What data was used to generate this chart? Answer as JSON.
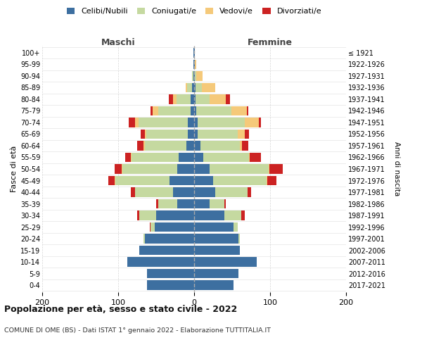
{
  "age_groups": [
    "0-4",
    "5-9",
    "10-14",
    "15-19",
    "20-24",
    "25-29",
    "30-34",
    "35-39",
    "40-44",
    "45-49",
    "50-54",
    "55-59",
    "60-64",
    "65-69",
    "70-74",
    "75-79",
    "80-84",
    "85-89",
    "90-94",
    "95-99",
    "100+"
  ],
  "birth_years": [
    "2017-2021",
    "2012-2016",
    "2007-2011",
    "2002-2006",
    "1997-2001",
    "1992-1996",
    "1987-1991",
    "1982-1986",
    "1977-1981",
    "1972-1976",
    "1967-1971",
    "1962-1966",
    "1957-1961",
    "1952-1956",
    "1947-1951",
    "1942-1946",
    "1937-1941",
    "1932-1936",
    "1927-1931",
    "1922-1926",
    "≤ 1921"
  ],
  "maschi": {
    "celibi": [
      62,
      62,
      88,
      72,
      65,
      52,
      50,
      22,
      28,
      32,
      22,
      20,
      10,
      8,
      8,
      5,
      5,
      3,
      1,
      1,
      1
    ],
    "coniugati": [
      0,
      0,
      0,
      0,
      2,
      5,
      22,
      25,
      50,
      72,
      72,
      62,
      55,
      55,
      65,
      42,
      18,
      6,
      2,
      0,
      0
    ],
    "vedovi": [
      0,
      0,
      0,
      0,
      0,
      0,
      0,
      0,
      0,
      1,
      1,
      1,
      2,
      2,
      5,
      8,
      5,
      2,
      0,
      0,
      0
    ],
    "divorziati": [
      0,
      0,
      0,
      0,
      0,
      1,
      3,
      3,
      5,
      8,
      10,
      8,
      8,
      5,
      8,
      2,
      5,
      0,
      0,
      0,
      0
    ]
  },
  "femmine": {
    "nubili": [
      52,
      58,
      82,
      60,
      58,
      52,
      40,
      20,
      28,
      25,
      20,
      12,
      8,
      5,
      5,
      3,
      2,
      2,
      1,
      1,
      1
    ],
    "coniugate": [
      0,
      0,
      0,
      0,
      2,
      5,
      22,
      20,
      42,
      70,
      78,
      60,
      52,
      52,
      62,
      46,
      18,
      8,
      2,
      0,
      0
    ],
    "vedove": [
      0,
      0,
      0,
      0,
      0,
      0,
      0,
      0,
      0,
      1,
      1,
      1,
      3,
      10,
      18,
      20,
      22,
      18,
      8,
      2,
      0
    ],
    "divorziate": [
      0,
      0,
      0,
      0,
      0,
      0,
      5,
      2,
      5,
      12,
      18,
      15,
      8,
      5,
      3,
      2,
      5,
      0,
      0,
      0,
      0
    ]
  },
  "colors": {
    "celibi": "#3d6fa0",
    "coniugati": "#c5d9a0",
    "vedovi": "#f5c97a",
    "divorziati": "#cc2222"
  },
  "xlim": 200,
  "title": "Popolazione per età, sesso e stato civile - 2022",
  "subtitle": "COMUNE DI OME (BS) - Dati ISTAT 1° gennaio 2022 - Elaborazione TUTTITALIA.IT",
  "ylabel": "Fasce di età",
  "y2label": "Anni di nascita",
  "xlabel_maschi": "Maschi",
  "xlabel_femmine": "Femmine",
  "bg_color": "#ffffff",
  "grid_color": "#aaaaaa"
}
